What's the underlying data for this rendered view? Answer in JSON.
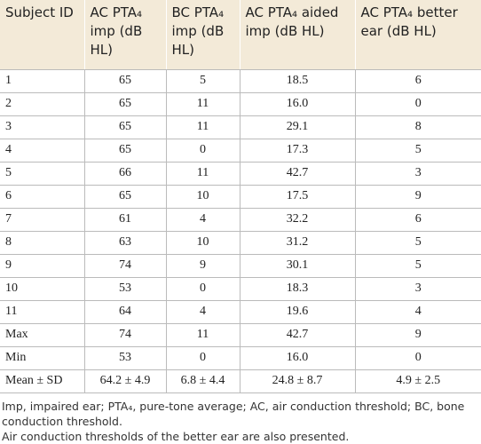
{
  "table": {
    "header": [
      "Subject ID",
      "AC PTA₄ imp (dB HL)",
      "BC PTA₄ imp (dB HL)",
      "AC PTA₄ aided imp (dB HL)",
      "AC PTA₄ better ear (dB HL)"
    ],
    "rows": [
      [
        "1",
        "65",
        "5",
        "18.5",
        "6"
      ],
      [
        "2",
        "65",
        "11",
        "16.0",
        "0"
      ],
      [
        "3",
        "65",
        "11",
        "29.1",
        "8"
      ],
      [
        "4",
        "65",
        "0",
        "17.3",
        "5"
      ],
      [
        "5",
        "66",
        "11",
        "42.7",
        "3"
      ],
      [
        "6",
        "65",
        "10",
        "17.5",
        "9"
      ],
      [
        "7",
        "61",
        "4",
        "32.2",
        "6"
      ],
      [
        "8",
        "63",
        "10",
        "31.2",
        "5"
      ],
      [
        "9",
        "74",
        "9",
        "30.1",
        "5"
      ],
      [
        "10",
        "53",
        "0",
        "18.3",
        "3"
      ],
      [
        "11",
        "64",
        "4",
        "19.6",
        "4"
      ],
      [
        "Max",
        "74",
        "11",
        "42.7",
        "9"
      ],
      [
        "Min",
        "53",
        "0",
        "16.0",
        "0"
      ],
      [
        "Mean ± SD",
        "64.2 ± 4.9",
        "6.8 ± 4.4",
        "24.8 ± 8.7",
        "4.9 ± 2.5"
      ]
    ]
  },
  "footnotes": [
    "Imp, impaired ear; PTA₄, pure-tone average; AC, air conduction threshold; BC, bone conduction threshold.",
    "Air conduction thresholds of the better ear are also presented."
  ]
}
